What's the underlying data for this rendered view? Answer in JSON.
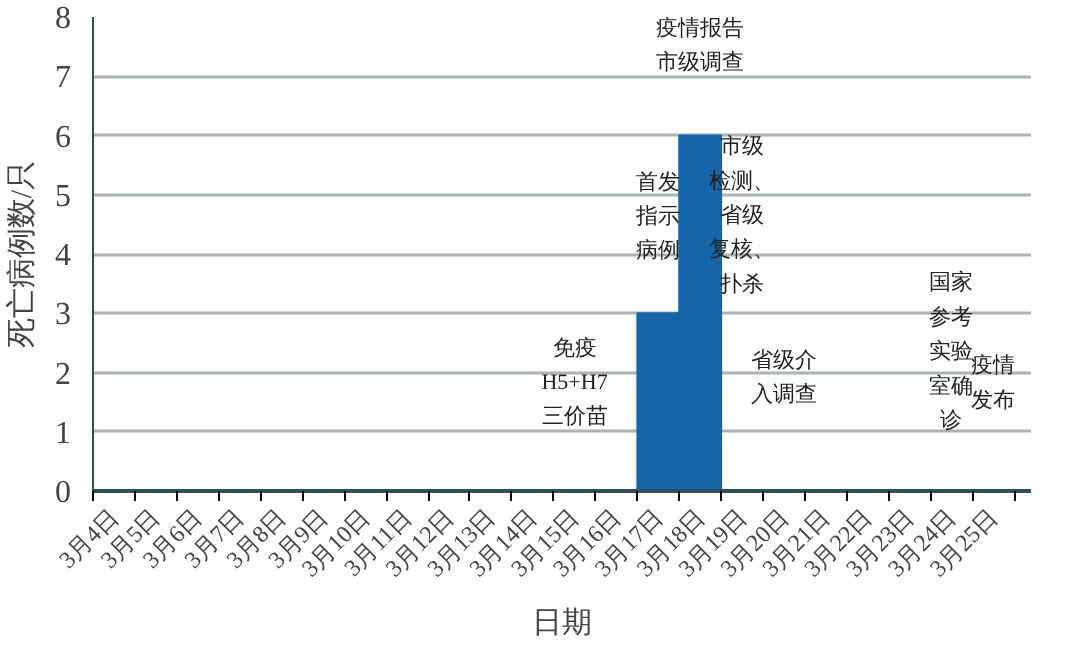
{
  "chart_data": {
    "type": "bar",
    "xlabel": "日期",
    "ylabel": "死亡病例数/只",
    "categories": [
      "3月4日",
      "3月5日",
      "3月6日",
      "3月7日",
      "3月8日",
      "3月9日",
      "3月10日",
      "3月11日",
      "3月12日",
      "3月13日",
      "3月14日",
      "3月15日",
      "3月16日",
      "3月17日",
      "3月18日",
      "3月19日",
      "3月20日",
      "3月21日",
      "3月22日",
      "3月23日",
      "3月24日",
      "3月25日"
    ],
    "values": [
      0,
      0,
      0,
      0,
      0,
      0,
      0,
      0,
      0,
      0,
      0,
      0,
      0,
      3,
      6,
      0,
      0,
      0,
      0,
      0,
      0,
      0
    ],
    "color": "#1565a8",
    "ylim": [
      0,
      8
    ],
    "yticks": [
      0,
      1,
      2,
      3,
      4,
      5,
      6,
      7,
      8
    ],
    "grid": "y",
    "annotations": [
      "免疫H5+H7三价苗",
      "首发指示病例",
      "疫情报告市级调查",
      "市级检测、省级复核、扑杀",
      "省级介入调查",
      "国家参考实验室确诊",
      "疫情发布"
    ]
  }
}
